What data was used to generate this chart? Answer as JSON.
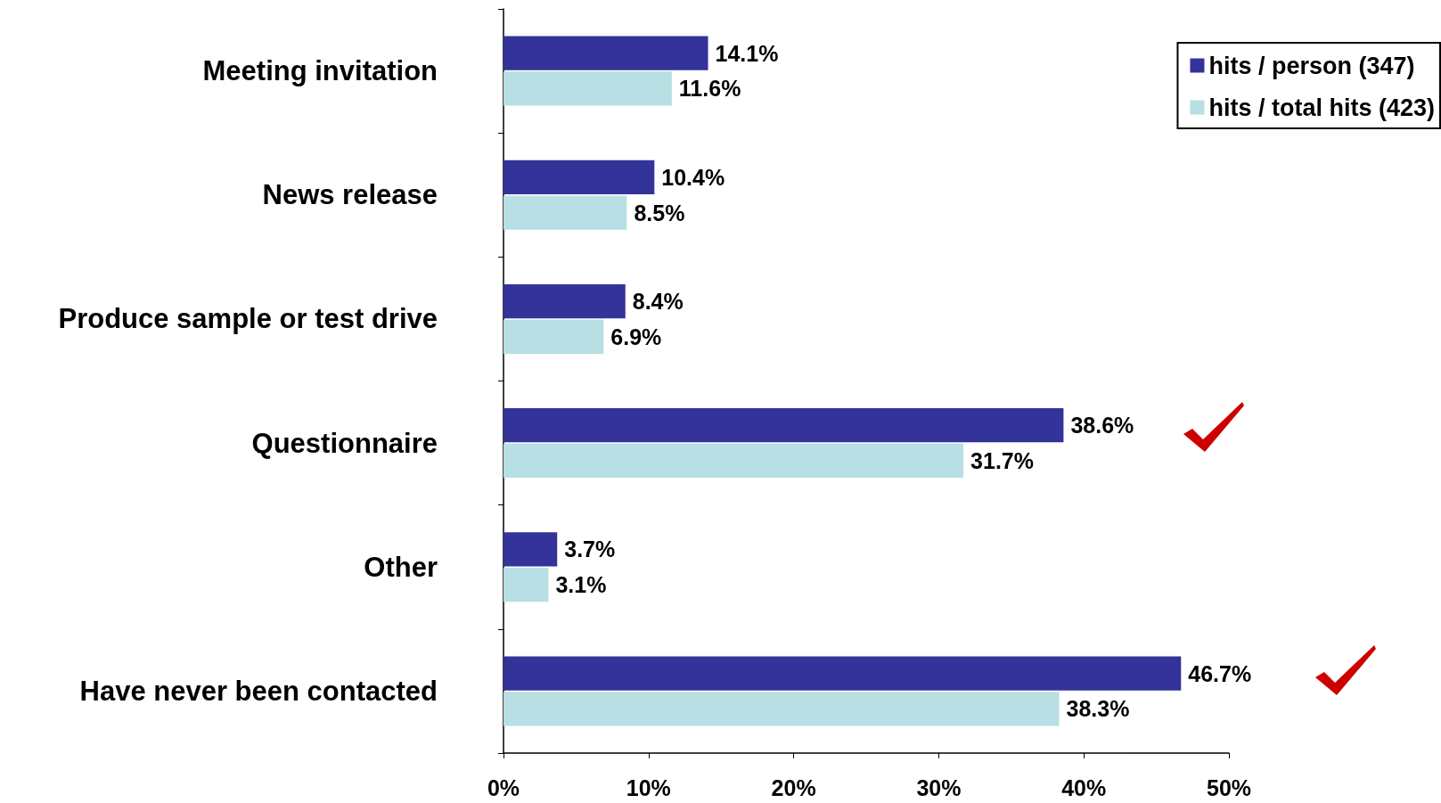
{
  "chart_data": {
    "type": "bar",
    "orientation": "horizontal",
    "categories": [
      "Meeting invitation",
      "News release",
      "Produce sample or test drive",
      "Questionnaire",
      "Other",
      "Have never been contacted"
    ],
    "series": [
      {
        "name": "hits / person (347)",
        "color": "#333399",
        "values": [
          14.1,
          10.4,
          8.4,
          38.6,
          3.7,
          46.7
        ],
        "value_labels": [
          "14.1%",
          "10.4%",
          "8.4%",
          "38.6%",
          "3.7%",
          "46.7%"
        ]
      },
      {
        "name": "hits / total hits (423)",
        "color": "#b8dfe3",
        "values": [
          11.6,
          8.5,
          6.9,
          31.7,
          3.1,
          38.3
        ],
        "value_labels": [
          "11.6%",
          "8.5%",
          "6.9%",
          "31.7%",
          "3.1%",
          "38.3%"
        ]
      }
    ],
    "xlim": [
      0,
      50
    ],
    "xticks": [
      {
        "value": 0,
        "label": "0%"
      },
      {
        "value": 10,
        "label": "10%"
      },
      {
        "value": 20,
        "label": "20%"
      },
      {
        "value": 30,
        "label": "30%"
      },
      {
        "value": 40,
        "label": "40%"
      },
      {
        "value": 50,
        "label": "50%"
      }
    ],
    "grid": false,
    "legend": "top right"
  }
}
